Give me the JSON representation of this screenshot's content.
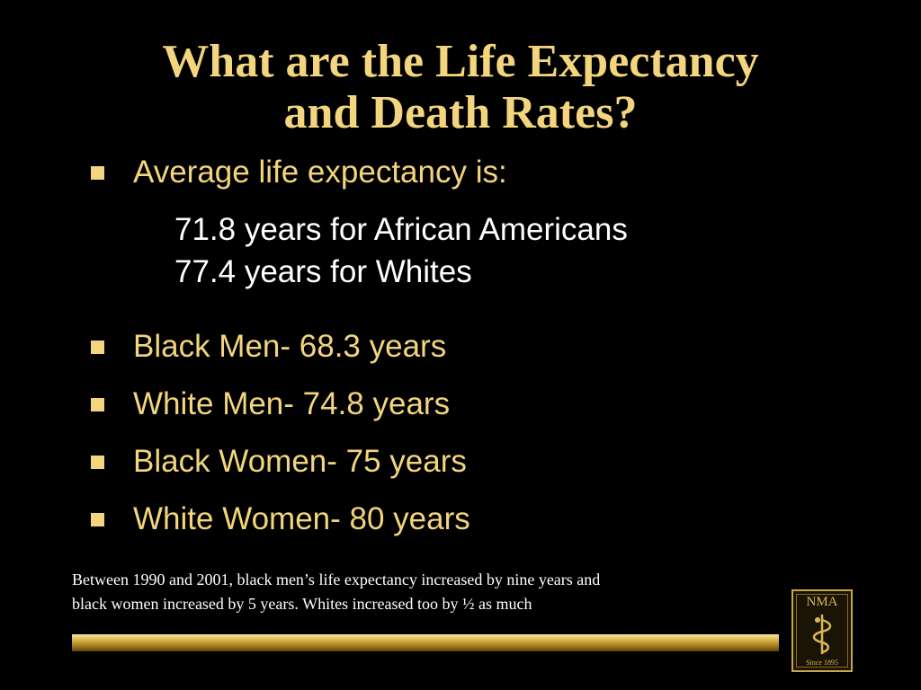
{
  "slide": {
    "title_lines": [
      "What are the Life Expectancy",
      "and Death Rates?"
    ],
    "bullets": {
      "intro": "Average life expectancy is:",
      "sub_items": [
        "71.8 years for African Americans",
        "77.4 years for Whites"
      ],
      "items": [
        "Black Men- 68.3 years",
        "White Men- 74.8 years",
        "Black Women- 75 years",
        "White Women- 80 years"
      ]
    },
    "note_lines": [
      "Between 1990 and 2001, black men’s life expectancy increased by nine years and",
      "black women increased by 5 years.  Whites increased too by ½ as much"
    ],
    "logo": {
      "text": "NMA",
      "since": "Since 1895",
      "icon": "caduceus-icon"
    }
  },
  "colors": {
    "background": "#000000",
    "accent_gold": "#f2d57c",
    "body_white": "#ffffff"
  }
}
